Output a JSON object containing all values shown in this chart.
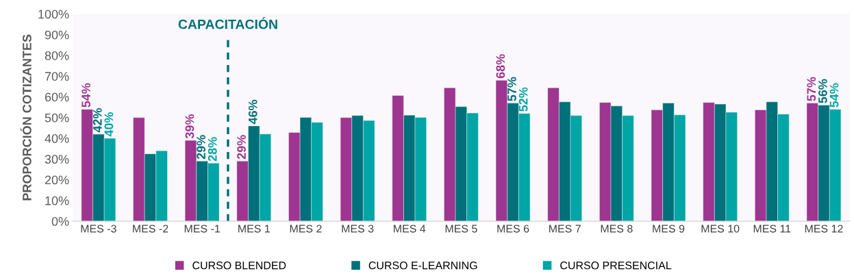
{
  "chart_data": {
    "type": "bar",
    "ylabel": "PROPORCIÓN COTIZANTES",
    "categories": [
      "MES -3",
      "MES -2",
      "MES -1",
      "MES 1",
      "MES 2",
      "MES 3",
      "MES 4",
      "MES 5",
      "MES 6",
      "MES 7",
      "MES 8",
      "MES 9",
      "MES 10",
      "MES 11",
      "MES 12"
    ],
    "series": [
      {
        "name": "CURSO BLENDED",
        "color": "#9e3590",
        "values": [
          54,
          50,
          39,
          29,
          42.8,
          50,
          60.7,
          64.4,
          68,
          64.4,
          57.3,
          53.7,
          57.3,
          53.7,
          57
        ],
        "value_labels": [
          "54%",
          null,
          "39%",
          "29%",
          null,
          null,
          null,
          null,
          "68%",
          null,
          null,
          null,
          null,
          null,
          "57%"
        ]
      },
      {
        "name": "CURSO E-LEARNING",
        "color": "#00707a",
        "values": [
          42,
          32.5,
          29,
          46,
          50.1,
          51,
          51.2,
          55.3,
          57,
          57.6,
          55.6,
          57,
          56.5,
          57.6,
          56
        ],
        "value_labels": [
          "42%",
          null,
          "29%",
          "46%",
          null,
          null,
          null,
          null,
          "57%",
          null,
          null,
          null,
          null,
          null,
          "56%"
        ]
      },
      {
        "name": "CURSO PRESENCIAL",
        "color": "#00a5a5",
        "values": [
          40,
          34,
          28,
          42.1,
          47.7,
          48.6,
          50.1,
          52.2,
          52,
          51,
          51,
          51.3,
          52.6,
          51.7,
          54
        ],
        "value_labels": [
          "40%",
          null,
          "28%",
          null,
          null,
          null,
          null,
          null,
          "52%",
          null,
          null,
          null,
          null,
          null,
          "54%"
        ]
      }
    ],
    "ylim": [
      0,
      100
    ],
    "yticks": [
      {
        "value": 0,
        "label": "0%"
      },
      {
        "value": 10,
        "label": "10%"
      },
      {
        "value": 20,
        "label": "20%"
      },
      {
        "value": 30,
        "label": "30%"
      },
      {
        "value": 40,
        "label": "40%"
      },
      {
        "value": 50,
        "label": "50%"
      },
      {
        "value": 60,
        "label": "60%"
      },
      {
        "value": 70,
        "label": "70%"
      },
      {
        "value": 80,
        "label": "80%"
      },
      {
        "value": 90,
        "label": "90%"
      },
      {
        "value": 100,
        "label": "100%"
      }
    ],
    "annotations": [
      "CAPACITACIÓN"
    ],
    "grid": false,
    "legend": "bottom"
  }
}
